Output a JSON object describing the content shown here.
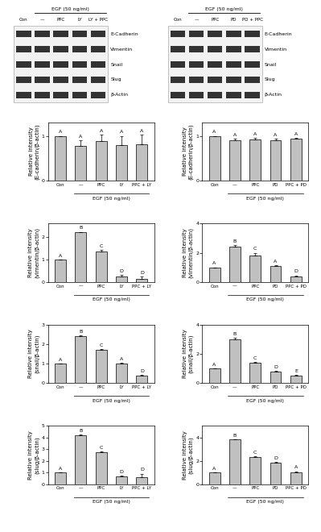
{
  "blots": [
    {
      "header": "EGF (50 ng/ml)",
      "lanes": [
        "Con",
        "—",
        "PPC",
        "LY",
        "LY + PPC"
      ],
      "proteins": [
        "E-Cadherin",
        "Vimentin",
        "Snail",
        "Slug",
        "β-Actin"
      ]
    },
    {
      "header": "EGF (50 ng/ml)",
      "lanes": [
        "Con",
        "—",
        "PPC",
        "PD",
        "PD + PPC"
      ],
      "proteins": [
        "E-Cadherin",
        "Vimentin",
        "Snail",
        "Slug",
        "β-Actin"
      ]
    }
  ],
  "chart_data": [
    {
      "type": "bar",
      "ylabel": "Relative intensity\n(E-cadherin/β-actin)",
      "xlabel": "EGF (50 ng/ml)",
      "categories": [
        "Con",
        "—",
        "PPC",
        "LY",
        "PPC + LY"
      ],
      "values": [
        1,
        0.78,
        0.88,
        0.8,
        0.82
      ],
      "errors": [
        0,
        0.12,
        0.15,
        0.2,
        0.2
      ],
      "letters": [
        "A",
        "A",
        "A",
        "A",
        "A"
      ],
      "color": "#c0c0c0",
      "ylim": [
        0,
        1.3
      ],
      "yticks": [
        0,
        1
      ]
    },
    {
      "type": "bar",
      "ylabel": "Relative intensity\n(vimentin/β-actin)",
      "xlabel": "EGF (50 ng/ml)",
      "categories": [
        "Con",
        "—",
        "PPC",
        "LY",
        "PPC + LY"
      ],
      "values": [
        1,
        2.2,
        1.35,
        0.25,
        0.15
      ],
      "errors": [
        0,
        0.03,
        0.08,
        0.05,
        0.1
      ],
      "letters": [
        "A",
        "B",
        "C",
        "D",
        "D"
      ],
      "color": "#c0c0c0",
      "ylim": [
        0,
        2.6
      ],
      "yticks": [
        0,
        1,
        2
      ]
    },
    {
      "type": "bar",
      "ylabel": "Relative intensity\n(snail/β-actin)",
      "xlabel": "EGF (50 ng/ml)",
      "categories": [
        "Con",
        "—",
        "PPC",
        "LY",
        "PPC + LY"
      ],
      "values": [
        1,
        2.4,
        1.7,
        1.0,
        0.4
      ],
      "errors": [
        0,
        0.03,
        0.05,
        0.03,
        0.03
      ],
      "letters": [
        "A",
        "B",
        "C",
        "A",
        "D"
      ],
      "color": "#c0c0c0",
      "ylim": [
        0,
        3
      ],
      "yticks": [
        0,
        1,
        2,
        3
      ]
    },
    {
      "type": "bar",
      "ylabel": "Relative intensity\n(slug/β-actin)",
      "xlabel": "EGF (50 ng/ml)",
      "categories": [
        "Con",
        "—",
        "PPC",
        "LY",
        "PPC + LY"
      ],
      "values": [
        1,
        4.2,
        2.7,
        0.65,
        0.6
      ],
      "errors": [
        0,
        0.06,
        0.1,
        0.05,
        0.3
      ],
      "letters": [
        "A",
        "B",
        "C",
        "D",
        "D"
      ],
      "color": "#c0c0c0",
      "ylim": [
        0,
        5
      ],
      "yticks": [
        0,
        1,
        2,
        3,
        4,
        5
      ]
    },
    {
      "type": "bar",
      "ylabel": "Relative intensity\n(E-cadherin/β-actin)",
      "xlabel": "EGF (50 ng/ml)",
      "categories": [
        "Con",
        "—",
        "PPC",
        "PD",
        "PPC + PD"
      ],
      "values": [
        1,
        0.9,
        0.92,
        0.9,
        0.93
      ],
      "errors": [
        0,
        0.03,
        0.04,
        0.03,
        0.03
      ],
      "letters": [
        "A",
        "A",
        "A",
        "A",
        "A"
      ],
      "color": "#c0c0c0",
      "ylim": [
        0,
        1.3
      ],
      "yticks": [
        0,
        1
      ]
    },
    {
      "type": "bar",
      "ylabel": "Relative intensity\n(vimentin/β-actin)",
      "xlabel": "EGF (50 ng/ml)",
      "categories": [
        "Con",
        "—",
        "PPC",
        "PD",
        "PPC + PD"
      ],
      "values": [
        1,
        2.4,
        1.8,
        1.1,
        0.4
      ],
      "errors": [
        0,
        0.1,
        0.2,
        0.05,
        0.05
      ],
      "letters": [
        "A",
        "B",
        "C",
        "A",
        "D"
      ],
      "color": "#c0c0c0",
      "ylim": [
        0,
        4
      ],
      "yticks": [
        0,
        2,
        4
      ]
    },
    {
      "type": "bar",
      "ylabel": "Relative intensity\n(snail/β-actin)",
      "xlabel": "EGF (50 ng/ml)",
      "categories": [
        "Con",
        "—",
        "PPC",
        "PD",
        "PPC + PD"
      ],
      "values": [
        1,
        3.0,
        1.4,
        0.8,
        0.5
      ],
      "errors": [
        0,
        0.1,
        0.05,
        0.05,
        0.04
      ],
      "letters": [
        "A",
        "B",
        "C",
        "D",
        "E"
      ],
      "color": "#c0c0c0",
      "ylim": [
        0,
        4
      ],
      "yticks": [
        0,
        2,
        4
      ]
    },
    {
      "type": "bar",
      "ylabel": "Relative intensity\n(slug/β-actin)",
      "xlabel": "EGF (50 ng/ml)",
      "categories": [
        "Con",
        "—",
        "PPC",
        "PD",
        "PPC + PD"
      ],
      "values": [
        1,
        3.8,
        2.3,
        1.8,
        1.0
      ],
      "errors": [
        0,
        0.05,
        0.1,
        0.1,
        0.1
      ],
      "letters": [
        "A",
        "B",
        "C",
        "D",
        "A"
      ],
      "color": "#c0c0c0",
      "ylim": [
        0,
        5
      ],
      "yticks": [
        0,
        2,
        4
      ]
    }
  ]
}
